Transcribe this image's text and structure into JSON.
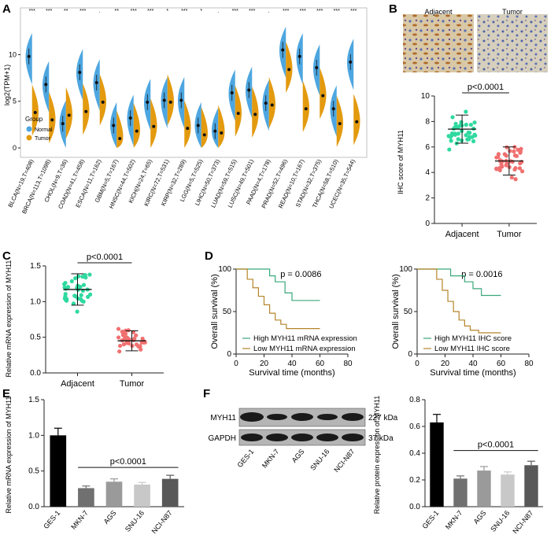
{
  "colors": {
    "normal": "#4DA6E0",
    "tumor": "#E39A0F",
    "adjacent_pt": "#2FD9A0",
    "tumor_pt": "#F07070",
    "high": "#3AA77C",
    "low": "#B5852A"
  },
  "panels": {
    "A": "A",
    "B": "B",
    "C": "C",
    "D": "D",
    "E": "E",
    "F": "F"
  },
  "chart_data": [
    {
      "id": "A",
      "type": "violin",
      "title": "",
      "ylabel": "log2(TPM+1)",
      "ylim": [
        0,
        14
      ],
      "yticks": [
        "0",
        "5",
        "10"
      ],
      "legend": {
        "title": "Group",
        "items": [
          "Normal",
          "Tumor"
        ],
        "placement": "bottom-left"
      },
      "categories": [
        "BLCA(N=19,T=408)",
        "BRCA(N=113,T=1098)",
        "CHOL(N=9,T=36)",
        "COAD(N=41,T=458)",
        "ESCA(N=11,T=162)",
        "GBM(N=5,T=167)",
        "HNSC(N=44,T=502)",
        "KICH(N=24,T=65)",
        "KIRC(N=72,T=531)",
        "KIRP(N=32,T=289)",
        "LGG(N=5,T=525)",
        "LIHC(N=50,T=373)",
        "LUAD(N=59,T=515)",
        "LUSC(N=49,T=501)",
        "PAAD(N=4,T=178)",
        "PRAD(N=52,T=496)",
        "READ(N=10,T=167)",
        "STAD(N=32,T=375)",
        "THCA(N=58,T=510)",
        "UCEC(N=35,T=544)"
      ],
      "significance": [
        "***",
        "***",
        "**",
        "***",
        ".",
        "**",
        "***",
        "***",
        "*",
        "***",
        "*",
        ".",
        "***",
        "***",
        ".",
        "***",
        "***",
        "***",
        "***",
        "***"
      ],
      "normal_median": [
        9.8,
        6.8,
        2.6,
        8.1,
        7.0,
        2.4,
        3.2,
        4.9,
        5.1,
        5.1,
        2.4,
        1.8,
        5.9,
        6.2,
        4.8,
        10.5,
        9.8,
        8.6,
        4.2,
        9.2
      ],
      "tumor_median": [
        3.8,
        3.0,
        3.5,
        3.9,
        4.9,
        1.0,
        1.8,
        2.3,
        4.9,
        2.1,
        1.4,
        1.6,
        3.7,
        3.6,
        4.6,
        8.4,
        4.2,
        5.6,
        2.6,
        2.8
      ]
    },
    {
      "id": "B",
      "type": "scatter",
      "ylabel": "IHC score of MYH11",
      "ylim": [
        0,
        10
      ],
      "yticks": [
        "0",
        "2",
        "4",
        "6",
        "8",
        "10"
      ],
      "categories": [
        "Adjacent",
        "Tumor"
      ],
      "means": [
        7.4,
        4.9
      ],
      "sds": [
        1.1,
        1.1
      ],
      "pvalue": "p<0.0001",
      "images": {
        "left": "Adjacent",
        "right": "Tumor"
      }
    },
    {
      "id": "C",
      "type": "scatter",
      "ylabel": "Relative mRNA expression of MYH11",
      "ylim": [
        0,
        1.5
      ],
      "yticks": [
        "0.0",
        "0.5",
        "1.0",
        "1.5"
      ],
      "categories": [
        "Adjacent",
        "Tumor"
      ],
      "means": [
        1.17,
        0.45
      ],
      "sds": [
        0.22,
        0.14
      ],
      "pvalue": "p<0.0001"
    },
    {
      "id": "D1",
      "type": "line",
      "ylabel": "Overall survival (%)",
      "xlabel": "Survival time (months)",
      "xlim": [
        0,
        80
      ],
      "ylim": [
        0,
        100
      ],
      "xticks": [
        "0",
        "20",
        "40",
        "60",
        "80"
      ],
      "yticks": [
        "0",
        "50",
        "100"
      ],
      "pvalue": "p = 0.0086",
      "series": [
        {
          "name": "High MYH11 mRNA  expression",
          "x": [
            0,
            18,
            24,
            28,
            35,
            40,
            48,
            60
          ],
          "y": [
            100,
            100,
            92,
            85,
            72,
            63,
            63,
            63
          ]
        },
        {
          "name": "Low MYH11  mRNA expression",
          "x": [
            0,
            8,
            12,
            16,
            20,
            24,
            28,
            32,
            36,
            44,
            60
          ],
          "y": [
            100,
            88,
            78,
            68,
            58,
            48,
            40,
            35,
            30,
            30,
            30
          ]
        }
      ]
    },
    {
      "id": "D2",
      "type": "line",
      "ylabel": "Overall survival (%)",
      "xlabel": "Survival time (months)",
      "xlim": [
        0,
        80
      ],
      "ylim": [
        0,
        100
      ],
      "xticks": [
        "0",
        "20",
        "40",
        "60",
        "80"
      ],
      "yticks": [
        "0",
        "50",
        "100"
      ],
      "pvalue": "p = 0.0016",
      "series": [
        {
          "name": "High MYH11 IHC score",
          "x": [
            0,
            18,
            24,
            34,
            40,
            46,
            60
          ],
          "y": [
            100,
            100,
            92,
            85,
            77,
            69,
            69
          ]
        },
        {
          "name": "Low MYH11  IHC score",
          "x": [
            0,
            14,
            18,
            22,
            26,
            30,
            34,
            38,
            44,
            60
          ],
          "y": [
            100,
            88,
            75,
            62,
            50,
            40,
            33,
            28,
            25,
            25
          ]
        }
      ]
    },
    {
      "id": "E",
      "type": "bar",
      "ylabel": "Relative mRNA expression of MYH11",
      "ylim": [
        0,
        1.5
      ],
      "yticks": [
        "0.0",
        "0.5",
        "1.0",
        "1.5"
      ],
      "categories": [
        "GES-1",
        "MKN-7",
        "AGS",
        "SNU-16",
        "NCI-N87"
      ],
      "values": [
        1.0,
        0.26,
        0.35,
        0.31,
        0.39
      ],
      "errors": [
        0.1,
        0.03,
        0.04,
        0.03,
        0.05
      ],
      "pvalue": "p<0.0001"
    },
    {
      "id": "F",
      "type": "bar",
      "ylabel": "Relative protein expression of MYH11",
      "ylim": [
        0,
        0.8
      ],
      "yticks": [
        "0.0",
        "0.2",
        "0.4",
        "0.6",
        "0.8"
      ],
      "categories": [
        "GES-1",
        "MKN-7",
        "AGS",
        "SNU-16",
        "NCI-N87"
      ],
      "values": [
        0.63,
        0.21,
        0.27,
        0.24,
        0.31
      ],
      "errors": [
        0.06,
        0.02,
        0.03,
        0.02,
        0.03
      ],
      "pvalue": "p<0.0001"
    }
  ],
  "blot": {
    "rows": [
      "MYH11",
      "GAPDH"
    ],
    "sizes": [
      "227 kDa",
      "37 kDa"
    ],
    "lanes": [
      "GES-1",
      "MKN-7",
      "AGS",
      "SNU-16",
      "NCI-N87"
    ]
  }
}
